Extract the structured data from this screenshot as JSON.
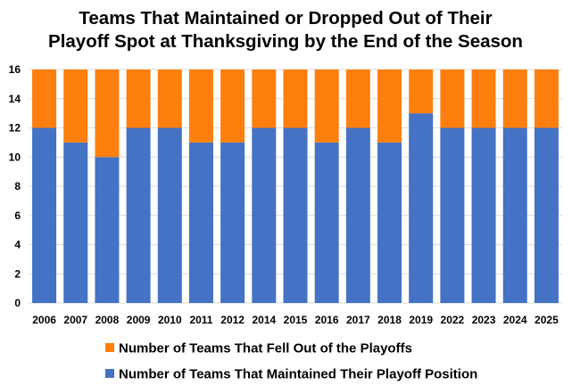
{
  "chart_data": {
    "type": "bar",
    "stacked": true,
    "title_lines": [
      "Teams That Maintained or Dropped Out of Their",
      "Playoff Spot at Thanksgiving by the End of the Season"
    ],
    "categories": [
      "2006",
      "2007",
      "2008",
      "2009",
      "2010",
      "2011",
      "2012",
      "2014",
      "2015",
      "2016",
      "2017",
      "2018",
      "2019",
      "2022",
      "2023",
      "2024",
      "2025"
    ],
    "series": [
      {
        "name": "Number of Teams That Maintained Their Playoff Position",
        "color": "#4472c4",
        "values": [
          12,
          11,
          10,
          12,
          12,
          11,
          11,
          12,
          12,
          11,
          12,
          11,
          13,
          12,
          12,
          12,
          12
        ]
      },
      {
        "name": "Number of Teams That Fell Out of the Playoffs",
        "color": "#ff7f0e",
        "values": [
          4,
          5,
          6,
          4,
          4,
          5,
          5,
          4,
          4,
          5,
          4,
          5,
          3,
          4,
          4,
          4,
          4
        ]
      }
    ],
    "ylim": [
      0,
      16
    ],
    "yticks": [
      "0",
      "2",
      "4",
      "6",
      "8",
      "10",
      "12",
      "14",
      "16"
    ],
    "grid": true,
    "legend_position": "bottom",
    "legend_order": [
      1,
      0
    ],
    "xlabel": "",
    "ylabel": ""
  }
}
